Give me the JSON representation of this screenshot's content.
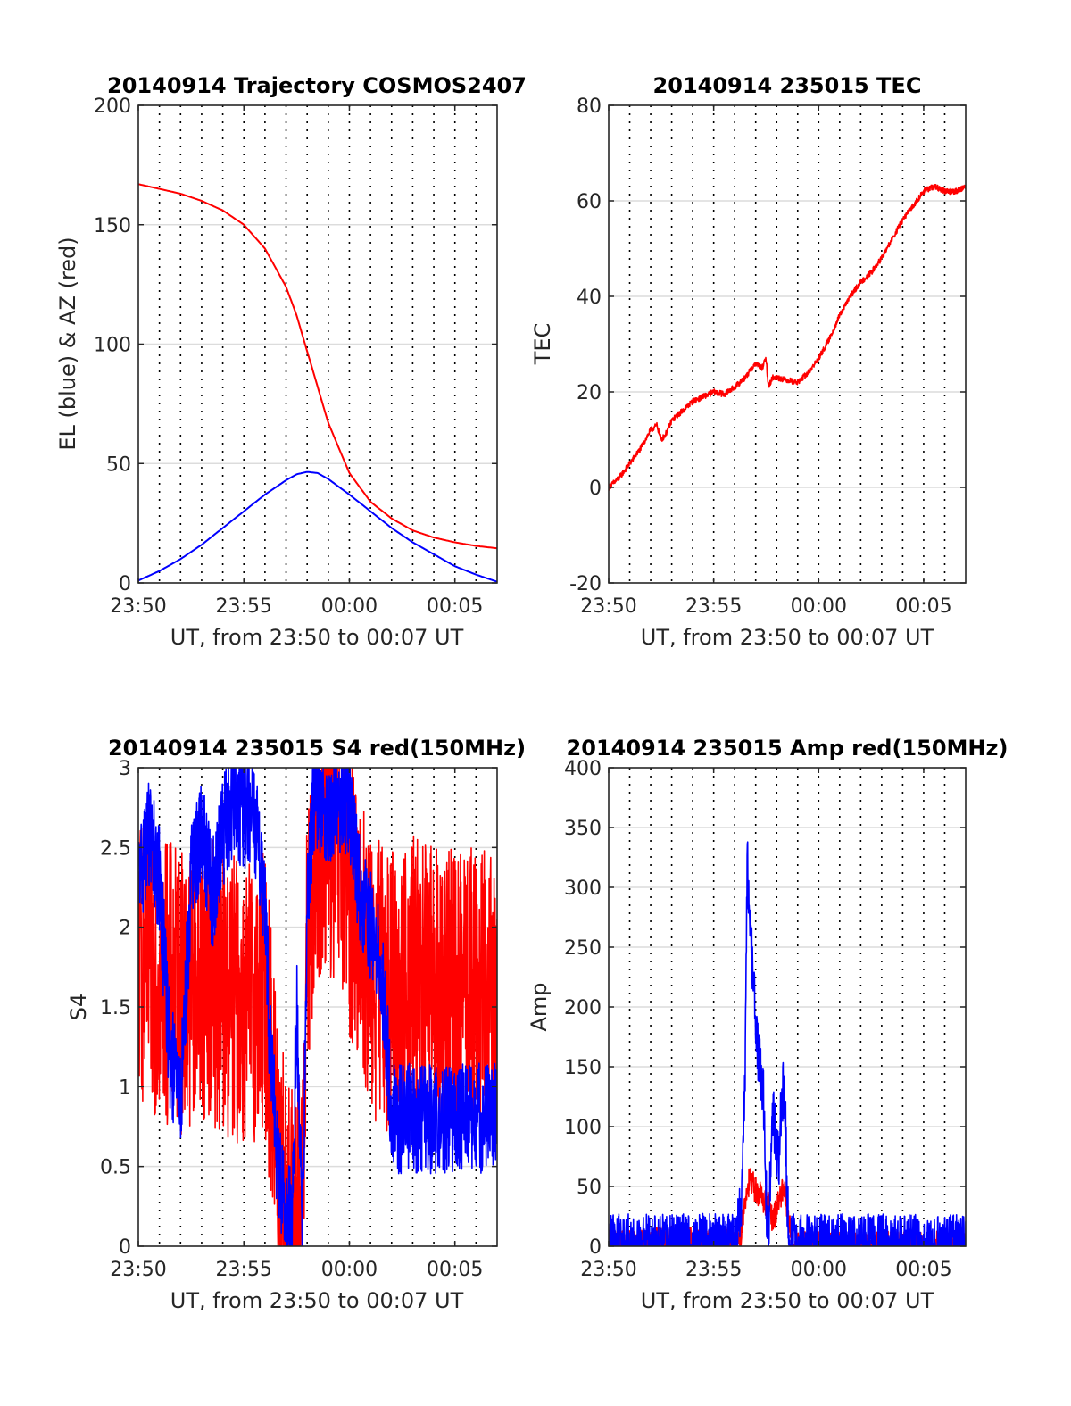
{
  "chart_data": [
    {
      "id": "trajectory",
      "type": "line",
      "title": "20140914 Trajectory COSMOS2407",
      "xlabel": "UT, from 23:50 to 00:07 UT",
      "ylabel": "EL (blue) & AZ (red)",
      "x_range_min": [
        0,
        17
      ],
      "x_ticks": [
        0,
        5,
        10,
        15
      ],
      "x_tick_labels": [
        "23:50",
        "23:55",
        "00:00",
        "00:05"
      ],
      "ylim": [
        0,
        200
      ],
      "y_ticks": [
        0,
        50,
        100,
        150,
        200
      ],
      "y_tick_labels": [
        "0",
        "50",
        "100",
        "150",
        "200"
      ],
      "grid": "vertical dotted every 1 min, horizontal at y ticks",
      "series": [
        {
          "color": "#ff0000",
          "x": [
            0,
            1,
            2,
            3,
            4,
            5,
            6,
            7,
            7.5,
            8,
            8.5,
            9,
            10,
            11,
            12,
            13,
            14,
            15,
            16,
            17
          ],
          "y": [
            167,
            165,
            163,
            160,
            156,
            150,
            140,
            124,
            112,
            97,
            82,
            67,
            46,
            34,
            27,
            22,
            19,
            17,
            15.5,
            14.5
          ]
        },
        {
          "color": "#0000ff",
          "x": [
            0,
            1,
            2,
            3,
            4,
            5,
            6,
            7,
            7.5,
            8,
            8.5,
            9,
            10,
            11,
            12,
            13,
            14,
            15,
            16,
            17
          ],
          "y": [
            1,
            5,
            10,
            16,
            23,
            30,
            37,
            43,
            45.5,
            46.5,
            46,
            43.5,
            37,
            30,
            23,
            17,
            12,
            7,
            3.5,
            0.5
          ]
        }
      ]
    },
    {
      "id": "tec",
      "type": "line",
      "title": "20140914 235015 TEC",
      "xlabel": "UT, from 23:50 to 00:07 UT",
      "ylabel": "TEC",
      "x_range_min": [
        0,
        17
      ],
      "x_ticks": [
        0,
        5,
        10,
        15
      ],
      "x_tick_labels": [
        "23:50",
        "23:55",
        "00:00",
        "00:05"
      ],
      "ylim": [
        -20,
        80
      ],
      "y_ticks": [
        -20,
        0,
        20,
        40,
        60,
        80
      ],
      "y_tick_labels": [
        "-20",
        "0",
        "20",
        "40",
        "60",
        "80"
      ],
      "grid": "vertical dotted every 1 min, horizontal at y ticks",
      "series": [
        {
          "color": "#ff0000",
          "noise": 0.6,
          "x": [
            0,
            0.5,
            1,
            1.5,
            2,
            2.3,
            2.5,
            2.7,
            3,
            3.5,
            4,
            4.5,
            5,
            5.5,
            6,
            6.5,
            7,
            7.3,
            7.5,
            7.6,
            7.8,
            8,
            8.5,
            9,
            9.5,
            10,
            10.5,
            11,
            11.5,
            12,
            12.5,
            13,
            13.5,
            14,
            14.5,
            15,
            15.5,
            16,
            16.5,
            17
          ],
          "y": [
            0,
            2,
            5,
            8,
            12,
            13,
            10,
            11,
            14,
            16,
            18,
            19,
            20,
            19.5,
            21,
            23,
            26,
            25,
            27,
            21,
            23,
            23,
            22.5,
            22,
            24,
            27,
            31,
            36,
            40,
            43,
            45,
            48,
            52,
            56,
            59,
            62,
            63,
            62,
            62,
            63
          ]
        }
      ]
    },
    {
      "id": "s4",
      "type": "line",
      "title": "20140914 235015 S4 red(150MHz)",
      "xlabel": "UT, from 23:50 to 00:07 UT",
      "ylabel": "S4",
      "x_range_min": [
        0,
        17
      ],
      "x_ticks": [
        0,
        5,
        10,
        15
      ],
      "x_tick_labels": [
        "23:50",
        "23:55",
        "00:00",
        "00:05"
      ],
      "ylim": [
        0,
        3
      ],
      "y_ticks": [
        0,
        0.5,
        1,
        1.5,
        2,
        2.5,
        3
      ],
      "y_tick_labels": [
        "0",
        "0.5",
        "1",
        "1.5",
        "2",
        "2.5",
        "3"
      ],
      "grid": "vertical dotted every 1 min, horizontal at y ticks",
      "series": [
        {
          "color": "#ff0000",
          "noise": 0.9,
          "clip": true,
          "x": [
            0,
            1,
            2,
            3,
            4,
            5,
            6,
            6.5,
            7,
            7.3,
            7.7,
            8,
            8.5,
            9,
            10,
            11,
            12,
            13,
            14,
            15,
            16,
            17
          ],
          "y": [
            1.8,
            1.7,
            1.6,
            1.7,
            1.6,
            1.5,
            1.6,
            0.8,
            0.2,
            0.15,
            0.2,
            1.8,
            2.5,
            2.6,
            2.2,
            1.7,
            1.6,
            1.7,
            1.6,
            1.6,
            1.6,
            1.6
          ]
        },
        {
          "color": "#0000ff",
          "noise": 0.35,
          "clip": true,
          "x": [
            0,
            0.5,
            1,
            1.5,
            2,
            2.5,
            3,
            3.5,
            4,
            4.5,
            5,
            5.5,
            6,
            6.2,
            6.6,
            7,
            7.3,
            7.5,
            7.8,
            8,
            8.3,
            8.7,
            9,
            9.5,
            10,
            10.5,
            11,
            11.5,
            12,
            12.5,
            13,
            14,
            15,
            16,
            17
          ],
          "y": [
            2.3,
            2.6,
            2.3,
            1.2,
            0.9,
            2.3,
            2.6,
            2.2,
            2.6,
            2.8,
            2.7,
            2.7,
            2.2,
            1.4,
            0.5,
            0.2,
            0.15,
            1.5,
            0.15,
            2.2,
            2.8,
            2.8,
            2.7,
            2.8,
            2.8,
            2.2,
            2.0,
            1.8,
            0.8,
            0.8,
            0.8,
            0.8,
            0.8,
            0.8,
            0.8
          ]
        }
      ]
    },
    {
      "id": "amp",
      "type": "line",
      "title": "20140914 235015 Amp red(150MHz)",
      "xlabel": "UT, from 23:50 to 00:07 UT",
      "ylabel": "Amp",
      "x_range_min": [
        0,
        17
      ],
      "x_ticks": [
        0,
        5,
        10,
        15
      ],
      "x_tick_labels": [
        "23:50",
        "23:55",
        "00:00",
        "00:05"
      ],
      "ylim": [
        0,
        400
      ],
      "y_ticks": [
        0,
        50,
        100,
        150,
        200,
        250,
        300,
        350,
        400
      ],
      "y_tick_labels": [
        "0",
        "50",
        "100",
        "150",
        "200",
        "250",
        "300",
        "350",
        "400"
      ],
      "grid": "vertical dotted every 1 min, horizontal at y ticks",
      "series": [
        {
          "color": "#ff0000",
          "noise": 12,
          "x": [
            0,
            2,
            2.5,
            3,
            4,
            5,
            5.5,
            6,
            6.3,
            6.5,
            6.7,
            7,
            7.3,
            7.6,
            7.8,
            8,
            8.2,
            8.4,
            8.6,
            8.8,
            9,
            11,
            13,
            15,
            17
          ],
          "y": [
            1,
            2,
            5,
            6,
            4,
            3,
            4,
            2,
            10,
            40,
            55,
            48,
            40,
            35,
            20,
            30,
            45,
            42,
            20,
            2,
            1,
            1,
            1,
            1,
            1
          ]
        },
        {
          "color": "#0000ff",
          "noise": 25,
          "x": [
            0,
            3,
            6,
            6.3,
            6.5,
            6.6,
            6.7,
            6.8,
            6.9,
            7.0,
            7.2,
            7.4,
            7.5,
            7.6,
            7.7,
            7.8,
            7.9,
            8.0,
            8.1,
            8.2,
            8.3,
            8.4,
            8.5,
            8.6,
            8.7,
            9,
            11,
            13,
            15,
            17
          ],
          "y": [
            2,
            2,
            3,
            30,
            150,
            325,
            270,
            250,
            220,
            180,
            150,
            120,
            40,
            5,
            60,
            110,
            100,
            80,
            70,
            110,
            130,
            120,
            40,
            3,
            2,
            2,
            2,
            2,
            2,
            2
          ]
        }
      ]
    }
  ]
}
